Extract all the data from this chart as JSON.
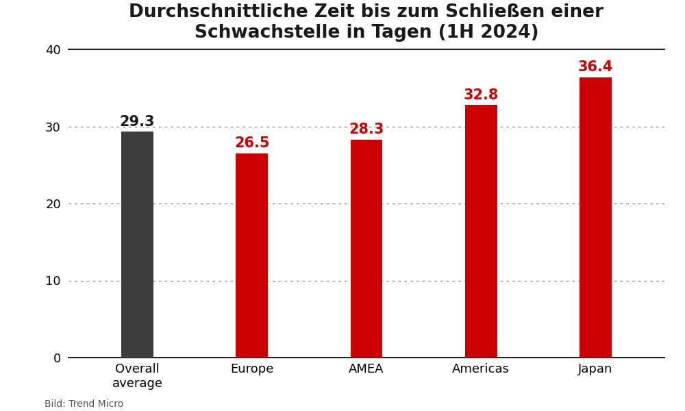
{
  "title": "Durchschnittliche Zeit bis zum Schließen einer\nSchwachstelle in Tagen (1H 2024)",
  "categories": [
    "Overall\naverage",
    "Europe",
    "AMEA",
    "Americas",
    "Japan"
  ],
  "values": [
    29.3,
    26.5,
    28.3,
    32.8,
    36.4
  ],
  "bar_colors": [
    "#3d3d3d",
    "#cc0000",
    "#cc0000",
    "#cc0000",
    "#cc0000"
  ],
  "value_colors": [
    "#1a1a1a",
    "#cc0000",
    "#cc0000",
    "#cc0000",
    "#cc0000"
  ],
  "ylim": [
    0,
    40
  ],
  "yticks": [
    0,
    10,
    20,
    30,
    40
  ],
  "ylabel": "",
  "xlabel": "",
  "footnote": "Bild: Trend Micro",
  "background_color": "#ffffff",
  "title_fontsize": 19,
  "tick_fontsize": 13,
  "value_fontsize": 15,
  "footnote_fontsize": 10,
  "bar_width": 0.28
}
